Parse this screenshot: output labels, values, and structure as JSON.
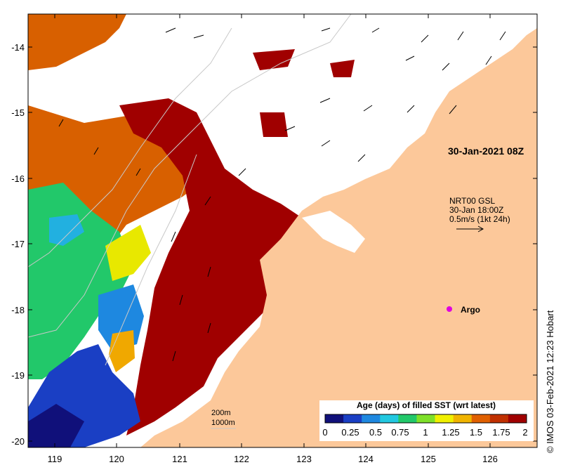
{
  "map": {
    "x_ticks": [
      "119",
      "120",
      "121",
      "122",
      "123",
      "124",
      "125",
      "126"
    ],
    "y_ticks": [
      "-14",
      "-15",
      "-16",
      "-17",
      "-18",
      "-19",
      "-20"
    ],
    "timestamp": "30-Jan-2021 08Z",
    "current_label_line1": "NRT00 GSL",
    "current_label_line2": "30-Jan 18:00Z",
    "current_label_line3": "0.5m/s (1kt 24h)",
    "argo_label": "Argo",
    "depth_200": "200m",
    "depth_1000": "1000m",
    "credit": "© IMOS 03-Feb-2021 12:23 Hobart"
  },
  "colorbar": {
    "title": "Age (days) of filled SST (wrt latest)",
    "ticks": [
      "0",
      "0.25",
      "0.5",
      "0.75",
      "1",
      "1.25",
      "1.5",
      "1.75",
      "2"
    ],
    "colors": [
      "#10107a",
      "#1a3fc4",
      "#1e88e0",
      "#22c8e0",
      "#22c86a",
      "#7ee02a",
      "#f0f000",
      "#f0b400",
      "#e06000",
      "#c03000",
      "#a00000"
    ]
  },
  "colors": {
    "land": "#fcc89a",
    "argo": "#e000e0",
    "sst_dark_red": "#a00000",
    "sst_orange": "#d86000",
    "sst_blue": "#1a3fc4",
    "sst_green": "#22c86a"
  }
}
